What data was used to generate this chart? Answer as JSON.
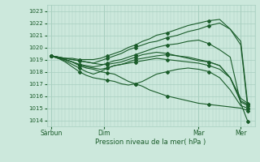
{
  "xlabel": "Pression niveau de la mer( hPa )",
  "bg_color": "#cce8dc",
  "grid_color": "#a8cfc0",
  "line_color": "#1a5c2a",
  "markersize": 2.0,
  "linewidth": 0.8,
  "ylim": [
    1013.5,
    1023.5
  ],
  "yticks": [
    1014,
    1015,
    1016,
    1017,
    1018,
    1019,
    1020,
    1021,
    1022,
    1023
  ],
  "xtick_labels": [
    "Sàrbun",
    "Dim",
    "Mar",
    "Mer"
  ],
  "xtick_positions": [
    0,
    60,
    168,
    216
  ],
  "xlim": [
    -5,
    232
  ],
  "series": [
    [
      0,
      1019.3,
      8,
      1019.1,
      16,
      1019.0,
      24,
      1018.8,
      32,
      1018.5,
      40,
      1018.3,
      48,
      1018.2,
      56,
      1018.0,
      64,
      1017.9,
      72,
      1017.8,
      80,
      1017.5,
      88,
      1017.2,
      96,
      1017.0,
      104,
      1016.8,
      112,
      1016.5,
      120,
      1016.3,
      132,
      1016.0,
      144,
      1015.8,
      156,
      1015.6,
      168,
      1015.4,
      180,
      1015.3,
      192,
      1015.2,
      204,
      1015.1,
      216,
      1015.0,
      224,
      1014.8
    ],
    [
      0,
      1019.3,
      8,
      1019.2,
      16,
      1019.1,
      24,
      1019.0,
      32,
      1018.9,
      40,
      1018.8,
      48,
      1018.7,
      56,
      1018.6,
      64,
      1018.6,
      72,
      1018.7,
      80,
      1018.8,
      88,
      1019.0,
      96,
      1019.2,
      104,
      1019.4,
      112,
      1019.5,
      120,
      1019.6,
      132,
      1019.5,
      144,
      1019.3,
      156,
      1019.1,
      168,
      1018.9,
      180,
      1018.8,
      192,
      1018.5,
      204,
      1017.5,
      216,
      1015.8,
      224,
      1015.4
    ],
    [
      0,
      1019.3,
      8,
      1019.2,
      16,
      1019.0,
      24,
      1018.8,
      32,
      1018.6,
      40,
      1018.4,
      48,
      1018.3,
      56,
      1018.2,
      64,
      1018.3,
      72,
      1018.5,
      80,
      1018.6,
      88,
      1018.8,
      96,
      1019.0,
      104,
      1019.1,
      112,
      1019.2,
      120,
      1019.3,
      132,
      1019.4,
      144,
      1019.3,
      156,
      1019.2,
      168,
      1019.0,
      180,
      1018.8,
      192,
      1018.5,
      204,
      1017.5,
      216,
      1015.6,
      224,
      1015.3
    ],
    [
      0,
      1019.3,
      8,
      1019.1,
      16,
      1018.8,
      24,
      1018.4,
      32,
      1018.0,
      40,
      1017.7,
      48,
      1017.5,
      56,
      1017.4,
      64,
      1017.3,
      72,
      1017.2,
      80,
      1017.0,
      88,
      1016.9,
      96,
      1017.0,
      104,
      1017.2,
      112,
      1017.5,
      120,
      1017.8,
      132,
      1018.0,
      144,
      1018.2,
      156,
      1018.3,
      168,
      1018.2,
      180,
      1018.0,
      192,
      1017.5,
      204,
      1016.5,
      216,
      1015.2,
      224,
      1015.0
    ],
    [
      0,
      1019.3,
      8,
      1019.2,
      16,
      1019.0,
      24,
      1018.8,
      32,
      1018.6,
      40,
      1018.5,
      48,
      1018.4,
      56,
      1018.5,
      64,
      1018.7,
      72,
      1018.9,
      80,
      1019.0,
      88,
      1019.2,
      96,
      1019.4,
      104,
      1019.6,
      112,
      1019.8,
      120,
      1020.0,
      132,
      1020.2,
      144,
      1020.3,
      156,
      1020.5,
      168,
      1020.6,
      180,
      1020.3,
      192,
      1019.8,
      204,
      1019.2,
      216,
      1015.4,
      224,
      1013.9
    ],
    [
      0,
      1019.3,
      8,
      1019.2,
      16,
      1019.1,
      24,
      1019.0,
      32,
      1018.9,
      40,
      1018.8,
      48,
      1018.7,
      56,
      1018.9,
      64,
      1019.1,
      72,
      1019.3,
      80,
      1019.5,
      88,
      1019.8,
      96,
      1020.0,
      104,
      1020.2,
      112,
      1020.4,
      120,
      1020.5,
      132,
      1020.8,
      144,
      1021.0,
      156,
      1021.3,
      168,
      1021.5,
      180,
      1021.8,
      192,
      1022.0,
      204,
      1021.5,
      216,
      1020.5,
      224,
      1015.3
    ],
    [
      0,
      1019.3,
      8,
      1019.2,
      16,
      1019.1,
      24,
      1019.1,
      32,
      1019.0,
      40,
      1019.0,
      48,
      1019.0,
      56,
      1019.1,
      64,
      1019.3,
      72,
      1019.5,
      80,
      1019.7,
      88,
      1020.0,
      96,
      1020.2,
      104,
      1020.5,
      112,
      1020.7,
      120,
      1021.0,
      132,
      1021.2,
      144,
      1021.5,
      156,
      1021.8,
      168,
      1022.0,
      180,
      1022.2,
      192,
      1022.3,
      204,
      1021.5,
      216,
      1020.2,
      224,
      1015.0
    ],
    [
      0,
      1019.3,
      8,
      1019.1,
      16,
      1018.9,
      24,
      1018.6,
      32,
      1018.3,
      40,
      1018.0,
      48,
      1017.8,
      56,
      1018.0,
      64,
      1018.3,
      72,
      1018.5,
      80,
      1018.6,
      88,
      1018.7,
      96,
      1018.8,
      104,
      1018.9,
      112,
      1019.0,
      120,
      1019.1,
      132,
      1019.0,
      144,
      1018.9,
      156,
      1018.8,
      168,
      1018.7,
      180,
      1018.5,
      192,
      1018.2,
      204,
      1017.5,
      216,
      1015.5,
      224,
      1015.2
    ]
  ]
}
